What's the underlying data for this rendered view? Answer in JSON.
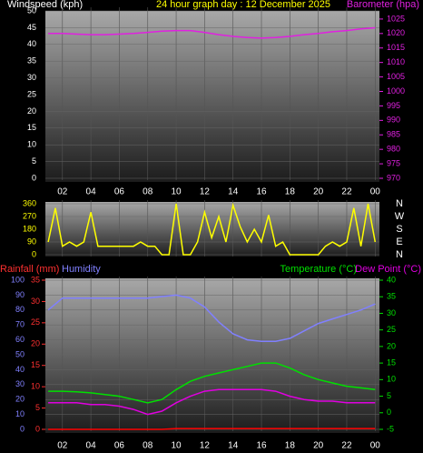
{
  "chart_data": [
    {
      "type": "line",
      "title": "24 hour graph day : 12 December 2025",
      "y_label": "Windspeed (kph)",
      "y2_label": "Barometer (hpa)",
      "x": [
        1,
        2,
        3,
        4,
        5,
        6,
        7,
        8,
        9,
        10,
        11,
        12,
        13,
        14,
        15,
        16,
        17,
        18,
        19,
        20,
        21,
        22,
        23,
        24
      ],
      "xlim": [
        0.8,
        24.3
      ],
      "xticks": [
        {
          "value": 2,
          "label": "02"
        },
        {
          "value": 4,
          "label": "04"
        },
        {
          "value": 6,
          "label": "06"
        },
        {
          "value": 8,
          "label": "08"
        },
        10,
        12,
        14,
        16,
        18,
        20,
        22,
        {
          "value": 24,
          "label": "00"
        }
      ],
      "ylim": [
        0,
        50
      ],
      "yticks": [
        0,
        5,
        10,
        15,
        20,
        25,
        30,
        35,
        40,
        45,
        50
      ],
      "y2lim": [
        970,
        1027.8
      ],
      "y2ticks": [
        970,
        975,
        980,
        985,
        990,
        995,
        1000,
        1005,
        1010,
        1015,
        1020,
        1025
      ],
      "series": [
        {
          "name": "Barometer",
          "color": "#e020e0",
          "axis": "y2",
          "values": [
            1020,
            1020,
            1019.8,
            1019.6,
            1019.6,
            1019.8,
            1020,
            1020.4,
            1020.8,
            1021,
            1021,
            1020.4,
            1019.6,
            1019,
            1018.6,
            1018.4,
            1018.6,
            1019,
            1019.6,
            1020,
            1020.6,
            1021,
            1021.6,
            1022
          ]
        }
      ]
    },
    {
      "type": "line",
      "x": [
        1,
        1.5,
        2,
        2.5,
        3,
        3.5,
        4,
        4.5,
        5,
        5.5,
        6,
        6.5,
        7,
        7.5,
        8,
        8.5,
        9,
        9.5,
        10,
        10.5,
        11,
        11.5,
        12,
        12.5,
        13,
        13.5,
        14,
        14.5,
        15,
        15.5,
        16,
        16.5,
        17,
        17.5,
        18,
        18.5,
        19,
        19.5,
        20,
        20.5,
        21,
        21.5,
        22,
        22.5,
        23,
        23.5,
        24
      ],
      "xlim": [
        0.8,
        24.3
      ],
      "ylim": [
        0,
        360
      ],
      "yticks": [
        0,
        90,
        180,
        270,
        360
      ],
      "compass": [
        "N",
        "W",
        "S",
        "E",
        "N"
      ],
      "series": [
        {
          "name": "Wind direction",
          "color": "#ffff00",
          "values": [
            90,
            330,
            60,
            90,
            60,
            90,
            300,
            60,
            60,
            60,
            60,
            60,
            60,
            90,
            60,
            60,
            0,
            0,
            360,
            0,
            0,
            90,
            300,
            120,
            270,
            90,
            350,
            200,
            90,
            180,
            90,
            280,
            60,
            90,
            0,
            0,
            0,
            0,
            0,
            60,
            90,
            60,
            90,
            330,
            60,
            360,
            90
          ]
        }
      ]
    },
    {
      "type": "line",
      "x": [
        1,
        2,
        3,
        4,
        5,
        6,
        7,
        8,
        9,
        10,
        11,
        12,
        13,
        14,
        15,
        16,
        17,
        18,
        19,
        20,
        21,
        22,
        23,
        24
      ],
      "xlim": [
        0.8,
        24.3
      ],
      "xticks": [
        {
          "value": 2,
          "label": "02"
        },
        {
          "value": 4,
          "label": "04"
        },
        {
          "value": 6,
          "label": "06"
        },
        {
          "value": 8,
          "label": "08"
        },
        10,
        12,
        14,
        16,
        18,
        20,
        22,
        {
          "value": 24,
          "label": "00"
        }
      ],
      "rain_label": "Rainfall (mm)",
      "humidity_label": "Humidity",
      "temp_label": "Temperature (°C)",
      "dew_label": "Dew Point (°C)",
      "ylim": [
        0,
        100
      ],
      "yticks": [
        0,
        10,
        20,
        30,
        40,
        50,
        60,
        70,
        80,
        90,
        100
      ],
      "y3lim": [
        0,
        35
      ],
      "y3ticks": [
        0,
        5,
        10,
        15,
        20,
        25,
        30,
        35
      ],
      "y2lim": [
        -5,
        40
      ],
      "y2ticks": [
        -5,
        0,
        5,
        10,
        15,
        20,
        25,
        30,
        35,
        40
      ],
      "series": [
        {
          "name": "Humidity",
          "color": "#8080ff",
          "axis": "y",
          "values": [
            80,
            88,
            88,
            88,
            88,
            88,
            88,
            88,
            89,
            90,
            88,
            82,
            72,
            64,
            60,
            59,
            59,
            61,
            66,
            71,
            74,
            77,
            80,
            84
          ]
        },
        {
          "name": "Temperature",
          "color": "#00e000",
          "axis": "y2",
          "values": [
            6.5,
            6.5,
            6.3,
            6,
            5.5,
            5,
            4,
            3,
            4,
            7,
            9.5,
            11,
            12,
            13,
            14,
            15,
            15,
            13.5,
            11.5,
            10,
            9,
            8,
            7.5,
            7
          ]
        },
        {
          "name": "Dew Point",
          "color": "#e000e0",
          "axis": "y2",
          "values": [
            3,
            3,
            3,
            2.5,
            2.5,
            2,
            1,
            -0.5,
            0.5,
            3,
            5,
            6.5,
            7,
            7,
            7,
            7,
            6.5,
            5,
            4,
            3.5,
            3.5,
            3,
            3,
            3
          ]
        },
        {
          "name": "Rainfall",
          "color": "#ff0000",
          "axis": "y3",
          "values": [
            0,
            0,
            0,
            0,
            0,
            0,
            0,
            0,
            0,
            0.2,
            0.2,
            0.2,
            0.2,
            0.2,
            0.2,
            0.2,
            0.2,
            0.2,
            0.2,
            0.2,
            0.2,
            0.2,
            0.2,
            0.2
          ]
        }
      ]
    }
  ]
}
